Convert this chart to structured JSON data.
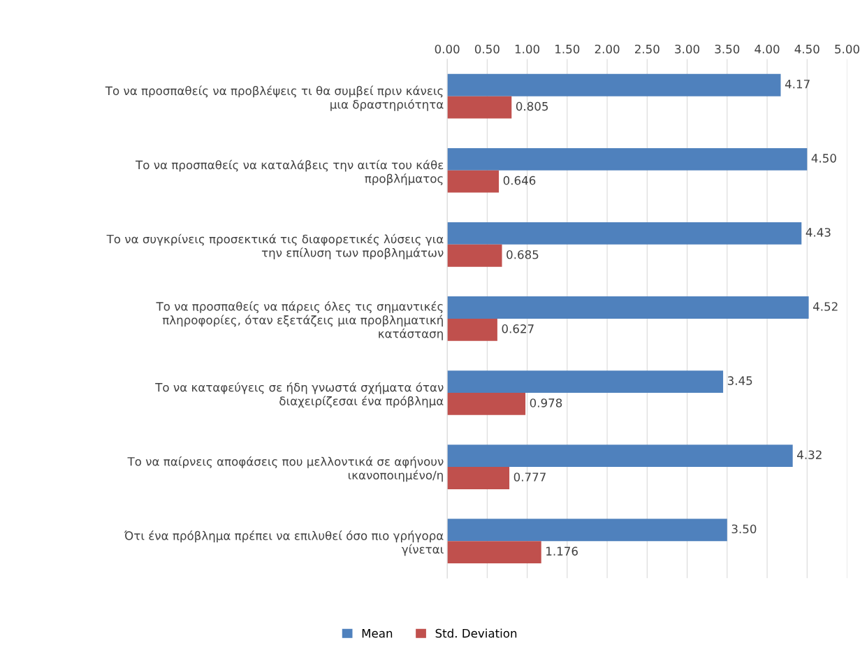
{
  "chart_data": {
    "type": "bar",
    "orientation": "horizontal",
    "categories": [
      "Το να προσπαθείς να προβλέψεις τι θα συμβεί πριν κάνεις\nμια δραστηριότητα",
      "Το να προσπαθείς να καταλάβεις την αιτία του κάθε\nπροβλήματος",
      "Το να συγκρίνεις προσεκτικά τις διαφορετικές λύσεις για\nτην επίλυση των προβλημάτων",
      "Το να προσπαθείς να πάρεις όλες τις σημαντικές\nπληροφορίες, όταν εξετάζεις μια προβληματική\nκατάσταση",
      "Το να καταφεύγεις σε ήδη γνωστά σχήματα όταν\nδιαχειρίζεσαι ένα πρόβλημα",
      "Το να παίρνεις αποφάσεις που μελλοντικά σε αφήνουν\nικανοποιημένο/η",
      "Ότι ένα πρόβλημα πρέπει να επιλυθεί όσο πιο γρήγορα\nγίνεται"
    ],
    "series": [
      {
        "name": "Mean",
        "color": "#4f81bd",
        "values": [
          4.17,
          4.5,
          4.43,
          4.52,
          3.45,
          4.32,
          3.5
        ],
        "value_labels": [
          "4.17",
          "4.50",
          "4.43",
          "4.52",
          "3.45",
          "4.32",
          "3.50"
        ]
      },
      {
        "name": "Std. Deviation",
        "color": "#c0504d",
        "values": [
          0.805,
          0.646,
          0.685,
          0.627,
          0.978,
          0.777,
          1.176
        ],
        "value_labels": [
          "0.805",
          "0.646",
          "0.685",
          "0.627",
          "0.978",
          "0.777",
          "1.176"
        ]
      }
    ],
    "xlim": [
      0,
      5
    ],
    "xticks": [
      {
        "value": 0,
        "label": "0.00"
      },
      {
        "value": 0.5,
        "label": "0.50"
      },
      {
        "value": 1,
        "label": "1.00"
      },
      {
        "value": 1.5,
        "label": "1.50"
      },
      {
        "value": 2,
        "label": "2.00"
      },
      {
        "value": 2.5,
        "label": "2.50"
      },
      {
        "value": 3,
        "label": "3.00"
      },
      {
        "value": 3.5,
        "label": "3.50"
      },
      {
        "value": 4,
        "label": "4.00"
      },
      {
        "value": 4.5,
        "label": "4.50"
      },
      {
        "value": 5,
        "label": "5.00"
      }
    ],
    "grid": "x",
    "legend": "bottom"
  }
}
